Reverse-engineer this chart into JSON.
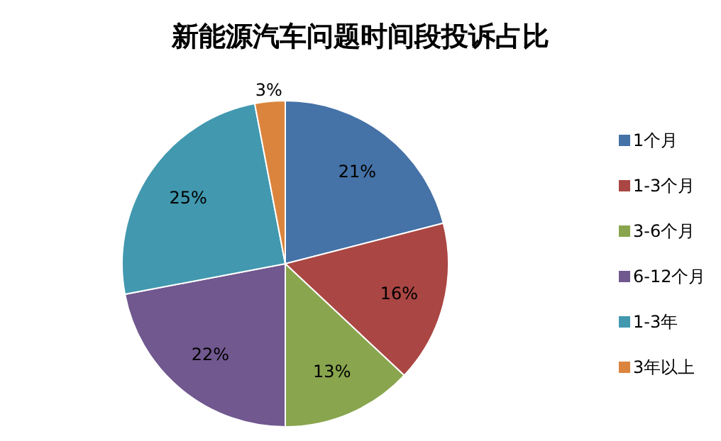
{
  "chart_data": {
    "type": "pie",
    "title": "新能源汽车问题时间段投诉占比",
    "categories": [
      "1个月",
      "1-3个月",
      "3-6个月",
      "6-12个月",
      "1-3年",
      "3年以上"
    ],
    "values": [
      21,
      16,
      13,
      22,
      25,
      3
    ],
    "colors": [
      "#4572a7",
      "#aa4643",
      "#89a54e",
      "#71588f",
      "#4198af",
      "#db843d"
    ],
    "value_labels": [
      "21%",
      "16%",
      "13%",
      "22%",
      "25%",
      "3%"
    ],
    "legend": "right"
  }
}
